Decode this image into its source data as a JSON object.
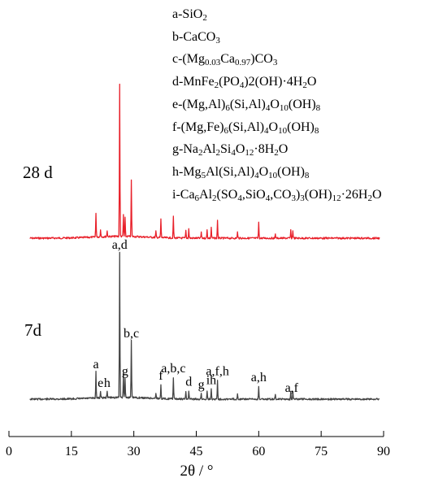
{
  "chart_data": {
    "type": "line",
    "title": "",
    "xlabel": "2θ / °",
    "ylabel": "",
    "xlim": [
      0,
      90
    ],
    "x_ticks": [
      0,
      15,
      30,
      45,
      60,
      75,
      90
    ],
    "grid": false,
    "legend_position": "top-right",
    "colors": {
      "28 d": "#e8202a",
      "7d": "#444444"
    },
    "legend_entries": [
      "a-SiO2",
      "b-CaCO3",
      "c-(Mg0.03Ca0.97)CO3",
      "d-MnFe2(PO4)2(OH)·4H2O",
      "e-(Mg,Al)6(Si,Al)4O10(OH)8",
      "f-(Mg,Fe)6(Si,Al)4O10(OH)8",
      "g-Na2Al2Si4O12·8H2O",
      "h-Mg5Al(Si,Al)4O10(OH)8",
      "i-Ca6Al2(SO4,SiO4,CO3)3(OH)12·26H2O"
    ],
    "series": [
      {
        "name": "28 d",
        "peaks": [
          {
            "x": 20.9,
            "y": 0.16
          },
          {
            "x": 22.0,
            "y": 0.05
          },
          {
            "x": 23.6,
            "y": 0.04
          },
          {
            "x": 26.6,
            "y": 1.0
          },
          {
            "x": 27.5,
            "y": 0.14
          },
          {
            "x": 27.9,
            "y": 0.12
          },
          {
            "x": 29.4,
            "y": 0.37
          },
          {
            "x": 35.3,
            "y": 0.04
          },
          {
            "x": 36.5,
            "y": 0.12
          },
          {
            "x": 39.5,
            "y": 0.14
          },
          {
            "x": 42.5,
            "y": 0.05
          },
          {
            "x": 43.2,
            "y": 0.06
          },
          {
            "x": 46.2,
            "y": 0.04
          },
          {
            "x": 47.6,
            "y": 0.06
          },
          {
            "x": 48.6,
            "y": 0.07
          },
          {
            "x": 50.1,
            "y": 0.12
          },
          {
            "x": 54.9,
            "y": 0.04
          },
          {
            "x": 60.0,
            "y": 0.1
          },
          {
            "x": 64.0,
            "y": 0.03
          },
          {
            "x": 67.7,
            "y": 0.05
          },
          {
            "x": 68.2,
            "y": 0.05
          }
        ]
      },
      {
        "name": "7d",
        "peaks": [
          {
            "x": 20.9,
            "y": 0.18
          },
          {
            "x": 22.0,
            "y": 0.05
          },
          {
            "x": 23.6,
            "y": 0.05
          },
          {
            "x": 26.6,
            "y": 1.0
          },
          {
            "x": 27.5,
            "y": 0.17
          },
          {
            "x": 27.9,
            "y": 0.13
          },
          {
            "x": 29.4,
            "y": 0.39
          },
          {
            "x": 35.3,
            "y": 0.04
          },
          {
            "x": 36.5,
            "y": 0.1
          },
          {
            "x": 39.5,
            "y": 0.15
          },
          {
            "x": 42.5,
            "y": 0.05
          },
          {
            "x": 43.2,
            "y": 0.06
          },
          {
            "x": 46.2,
            "y": 0.04
          },
          {
            "x": 47.6,
            "y": 0.06
          },
          {
            "x": 48.6,
            "y": 0.07
          },
          {
            "x": 50.1,
            "y": 0.13
          },
          {
            "x": 54.9,
            "y": 0.04
          },
          {
            "x": 60.0,
            "y": 0.09
          },
          {
            "x": 64.0,
            "y": 0.03
          },
          {
            "x": 67.7,
            "y": 0.05
          },
          {
            "x": 68.2,
            "y": 0.05
          }
        ]
      }
    ],
    "annotations": [
      {
        "text": "a",
        "x": 20.9
      },
      {
        "text": "e",
        "x": 22.0
      },
      {
        "text": "h",
        "x": 23.6
      },
      {
        "text": "a,d",
        "x": 26.6
      },
      {
        "text": "g",
        "x": 27.9
      },
      {
        "text": "b,c",
        "x": 29.4
      },
      {
        "text": "f",
        "x": 36.5
      },
      {
        "text": "a,b,c",
        "x": 39.5
      },
      {
        "text": "d",
        "x": 43.2
      },
      {
        "text": "g",
        "x": 46.2
      },
      {
        "text": "ih",
        "x": 48.6
      },
      {
        "text": "a,f,h",
        "x": 50.1
      },
      {
        "text": "a,h",
        "x": 60.0
      },
      {
        "text": "a,f",
        "x": 67.9
      }
    ]
  }
}
